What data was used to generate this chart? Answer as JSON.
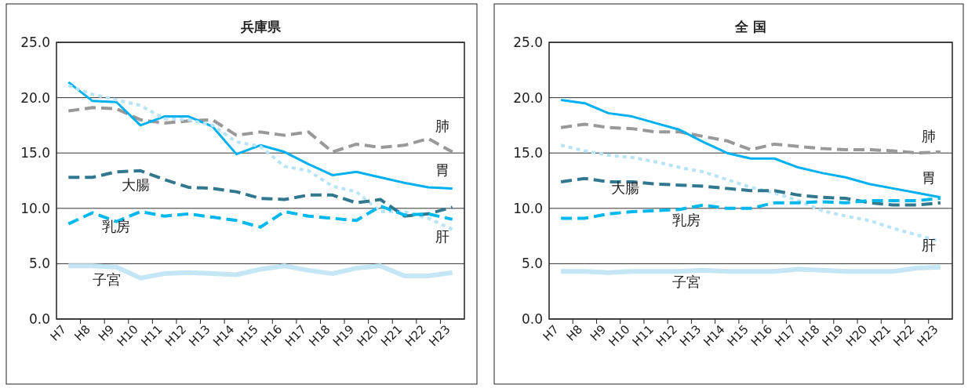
{
  "chart_data": [
    {
      "type": "line",
      "title": "兵庫県",
      "categories": [
        "H7",
        "H8",
        "H9",
        "H10",
        "H11",
        "H12",
        "H13",
        "H14",
        "H15",
        "H16",
        "H17",
        "H18",
        "H19",
        "H20",
        "H21",
        "H22",
        "H23"
      ],
      "ylim": [
        0,
        25
      ],
      "yticks": [
        {
          "value": 0,
          "label": "0.0"
        },
        {
          "value": 5,
          "label": "5.0"
        },
        {
          "value": 10,
          "label": "10.0"
        },
        {
          "value": 15,
          "label": "15.0"
        },
        {
          "value": 20,
          "label": "20.0"
        },
        {
          "value": 25,
          "label": "25.0"
        }
      ],
      "grid": "y",
      "legend": false,
      "series": [
        {
          "name": "肺",
          "color": "#999999",
          "line_style": "dashed",
          "values": [
            18.8,
            19.1,
            19.0,
            18.0,
            17.7,
            17.9,
            18.0,
            16.6,
            16.9,
            16.6,
            16.9,
            15.1,
            15.8,
            15.5,
            15.7,
            16.3,
            15.1
          ]
        },
        {
          "name": "胃",
          "color": "#00b0f0",
          "line_style": "solid",
          "values": [
            21.4,
            19.7,
            19.6,
            17.5,
            18.3,
            18.3,
            17.4,
            14.9,
            15.7,
            15.1,
            14.0,
            13.0,
            13.3,
            12.8,
            12.3,
            11.9,
            11.8
          ]
        },
        {
          "name": "肝",
          "color": "#b7e4f7",
          "line_style": "dotted",
          "values": [
            21.1,
            20.3,
            19.8,
            19.3,
            18.1,
            18.0,
            17.5,
            16.0,
            15.6,
            13.8,
            13.4,
            12.0,
            11.5,
            9.7,
            9.7,
            9.1,
            8.1
          ]
        },
        {
          "name": "大腸",
          "color": "#31788f",
          "line_style": "dashed",
          "values": [
            12.8,
            12.8,
            13.3,
            13.4,
            12.6,
            11.9,
            11.8,
            11.5,
            10.9,
            10.8,
            11.2,
            11.2,
            10.5,
            10.8,
            9.3,
            9.5,
            10.1
          ]
        },
        {
          "name": "乳房",
          "color": "#00b8ee",
          "line_style": "dashed",
          "values": [
            8.6,
            9.6,
            8.8,
            9.7,
            9.3,
            9.5,
            9.2,
            8.9,
            8.3,
            9.7,
            9.3,
            9.1,
            8.9,
            10.2,
            9.4,
            9.5,
            9.0
          ]
        },
        {
          "name": "子宮",
          "color": "#c5e6f5",
          "line_style": "solid",
          "values": [
            4.8,
            4.8,
            4.7,
            3.7,
            4.1,
            4.2,
            4.1,
            4.0,
            4.5,
            4.8,
            4.4,
            4.1,
            4.6,
            4.8,
            3.9,
            3.9,
            4.2
          ]
        }
      ]
    },
    {
      "type": "line",
      "title": "全 国",
      "categories": [
        "H7",
        "H8",
        "H9",
        "H10",
        "H11",
        "H12",
        "H13",
        "H14",
        "H15",
        "H16",
        "H17",
        "H18",
        "H19",
        "H20",
        "H21",
        "H22",
        "H23"
      ],
      "ylim": [
        0,
        25
      ],
      "yticks": [
        {
          "value": 0,
          "label": "0.0"
        },
        {
          "value": 5,
          "label": "5.0"
        },
        {
          "value": 10,
          "label": "10.0"
        },
        {
          "value": 15,
          "label": "15.0"
        },
        {
          "value": 20,
          "label": "20.0"
        },
        {
          "value": 25,
          "label": "25.0"
        }
      ],
      "grid": "y",
      "legend": false,
      "series": [
        {
          "name": "肺",
          "color": "#999999",
          "line_style": "dashed",
          "values": [
            17.3,
            17.6,
            17.3,
            17.2,
            16.9,
            16.9,
            16.5,
            16.1,
            15.3,
            15.8,
            15.6,
            15.4,
            15.3,
            15.3,
            15.2,
            15.0,
            15.1
          ]
        },
        {
          "name": "胃",
          "color": "#00b0f0",
          "line_style": "solid",
          "values": [
            19.8,
            19.5,
            18.6,
            18.3,
            17.7,
            17.1,
            16.0,
            15.0,
            14.5,
            14.5,
            13.7,
            13.2,
            12.8,
            12.2,
            11.8,
            11.4,
            11.0
          ]
        },
        {
          "name": "肝",
          "color": "#b7e4f7",
          "line_style": "dotted",
          "values": [
            15.7,
            15.2,
            14.8,
            14.6,
            14.2,
            13.7,
            13.3,
            12.6,
            11.9,
            11.4,
            10.7,
            9.8,
            9.3,
            8.9,
            8.2,
            7.6,
            7.0
          ]
        },
        {
          "name": "大腸",
          "color": "#31788f",
          "line_style": "dashed",
          "values": [
            12.4,
            12.7,
            12.4,
            12.4,
            12.2,
            12.1,
            12.0,
            11.8,
            11.6,
            11.6,
            11.2,
            11.0,
            10.9,
            10.5,
            10.3,
            10.3,
            10.5
          ]
        },
        {
          "name": "乳房",
          "color": "#00b8ee",
          "line_style": "dashed",
          "values": [
            9.1,
            9.1,
            9.5,
            9.7,
            9.8,
            9.9,
            10.3,
            10.0,
            10.0,
            10.5,
            10.5,
            10.6,
            10.5,
            10.7,
            10.7,
            10.7,
            10.9
          ]
        },
        {
          "name": "子宮",
          "color": "#c5e6f5",
          "line_style": "solid",
          "values": [
            4.3,
            4.3,
            4.2,
            4.3,
            4.3,
            4.3,
            4.4,
            4.3,
            4.3,
            4.3,
            4.5,
            4.4,
            4.3,
            4.3,
            4.3,
            4.6,
            4.7
          ]
        }
      ]
    }
  ]
}
